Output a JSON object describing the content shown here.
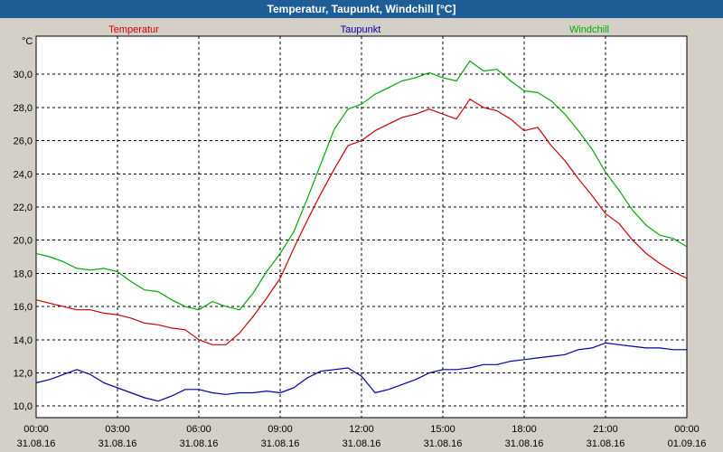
{
  "window": {
    "title": "Temperatur, Taupunkt, Windchill [°C]"
  },
  "colors": {
    "title_bar": "#1f5d97",
    "background": "#d4d0c8",
    "plot_background": "#ffffff",
    "grid": "#000000",
    "temperatur": "#cc0000",
    "taupunkt": "#0000aa",
    "windchill": "#00aa00"
  },
  "chart_data": {
    "type": "line",
    "title": "Temperatur, Taupunkt, Windchill [°C]",
    "ylabel": "°C",
    "ylim": [
      9.3,
      32.3
    ],
    "xlim": [
      "31.08.16 00:00",
      "01.09.16 00:00"
    ],
    "grid": true,
    "legend_placement": "top",
    "y_ticks": [
      "10,0",
      "12,0",
      "14,0",
      "16,0",
      "18,0",
      "20,0",
      "22,0",
      "24,0",
      "26,0",
      "28,0",
      "30,0"
    ],
    "x_ticks": [
      {
        "time": "00:00",
        "date": "31.08.16"
      },
      {
        "time": "03:00",
        "date": "31.08.16"
      },
      {
        "time": "06:00",
        "date": "31.08.16"
      },
      {
        "time": "09:00",
        "date": "31.08.16"
      },
      {
        "time": "12:00",
        "date": "31.08.16"
      },
      {
        "time": "15:00",
        "date": "31.08.16"
      },
      {
        "time": "18:00",
        "date": "31.08.16"
      },
      {
        "time": "21:00",
        "date": "31.08.16"
      },
      {
        "time": "00:00",
        "date": "01.09.16"
      }
    ],
    "x_hours": [
      0,
      0.5,
      1,
      1.5,
      2,
      2.5,
      3,
      3.5,
      4,
      4.5,
      5,
      5.5,
      6,
      6.5,
      7,
      7.5,
      8,
      8.5,
      9,
      9.5,
      10,
      10.5,
      11,
      11.5,
      12,
      12.5,
      13,
      13.5,
      14,
      14.5,
      15,
      15.5,
      16,
      16.5,
      17,
      17.5,
      18,
      18.5,
      19,
      19.5,
      20,
      20.5,
      21,
      21.5,
      22,
      22.5,
      23,
      23.5,
      24
    ],
    "series": [
      {
        "name": "Temperatur",
        "color_key": "temperatur",
        "values": [
          16.4,
          16.2,
          16.0,
          15.8,
          15.8,
          15.6,
          15.5,
          15.3,
          15.0,
          14.9,
          14.7,
          14.6,
          14.0,
          13.7,
          13.7,
          14.4,
          15.4,
          16.5,
          17.7,
          19.5,
          21.2,
          22.8,
          24.3,
          25.7,
          26.0,
          26.6,
          27.0,
          27.4,
          27.6,
          27.9,
          27.6,
          27.3,
          28.5,
          28.0,
          27.8,
          27.3,
          26.6,
          26.8,
          25.7,
          24.8,
          23.7,
          22.7,
          21.6,
          21.0,
          20.0,
          19.2,
          18.6,
          18.1,
          17.7
        ]
      },
      {
        "name": "Taupunkt",
        "color_key": "taupunkt",
        "values": [
          11.4,
          11.6,
          11.9,
          12.2,
          11.9,
          11.4,
          11.1,
          10.8,
          10.5,
          10.3,
          10.6,
          11.0,
          11.0,
          10.8,
          10.7,
          10.8,
          10.8,
          10.9,
          10.8,
          11.1,
          11.7,
          12.1,
          12.2,
          12.3,
          11.8,
          10.8,
          11.0,
          11.3,
          11.6,
          12.0,
          12.2,
          12.2,
          12.3,
          12.5,
          12.5,
          12.7,
          12.8,
          12.9,
          13.0,
          13.1,
          13.4,
          13.5,
          13.8,
          13.7,
          13.6,
          13.5,
          13.5,
          13.4,
          13.4
        ]
      },
      {
        "name": "Windchill",
        "color_key": "windchill",
        "values": [
          19.2,
          19.0,
          18.7,
          18.3,
          18.2,
          18.3,
          18.1,
          17.5,
          17.0,
          16.9,
          16.4,
          16.0,
          15.8,
          16.3,
          16.0,
          15.8,
          16.8,
          18.1,
          19.2,
          20.5,
          22.5,
          24.6,
          26.7,
          27.9,
          28.2,
          28.8,
          29.2,
          29.6,
          29.8,
          30.1,
          29.8,
          29.6,
          30.8,
          30.2,
          30.3,
          29.6,
          29.0,
          28.9,
          28.4,
          27.6,
          26.6,
          25.5,
          24.1,
          23.0,
          21.8,
          20.9,
          20.3,
          20.1,
          19.6
        ]
      }
    ]
  }
}
